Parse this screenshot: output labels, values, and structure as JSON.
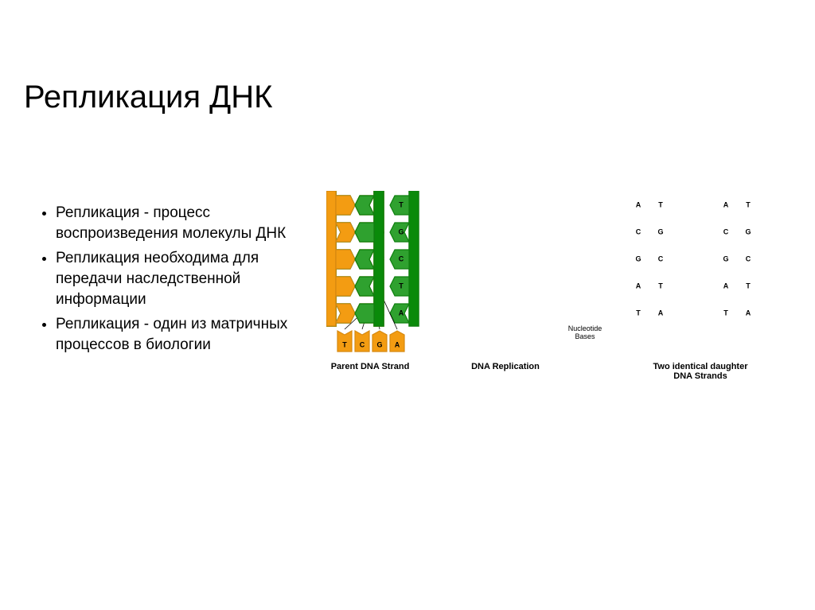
{
  "title": "Репликация ДНК",
  "bullets": [
    "Репликация - процесс воспроизведения молекулы ДНК",
    "Репликация необходима для передачи наследственной информации",
    "Репликация - один из матричных процессов в биологии"
  ],
  "captions": {
    "parent": "Parent DNA Strand",
    "replication": "DNA Replication",
    "daughters": "Two identical daughter\nDNA Strands",
    "nucleotides": "Nucleotide\nBases"
  },
  "colors": {
    "green": "#2fa12f",
    "green_dark": "#0f7f0f",
    "green_strand": "#0a8a0a",
    "orange": "#f39c12",
    "orange_dark": "#d68910",
    "black": "#000000",
    "white": "#ffffff",
    "bg": "#ffffff"
  },
  "base_letter_fontsize": 9,
  "caption_fontsize": 11,
  "bases_sequence_left": [
    "A",
    "C",
    "G",
    "A",
    "T"
  ],
  "bases_sequence_right": [
    "T",
    "G",
    "C",
    "T",
    "A"
  ],
  "free_nucleotides": [
    "T",
    "C",
    "G",
    "A"
  ],
  "strand": {
    "backbone_w": 12,
    "height": 170,
    "rung_h": 24,
    "rung_gap": 10,
    "base_w": 24,
    "arrow_w": 6
  }
}
